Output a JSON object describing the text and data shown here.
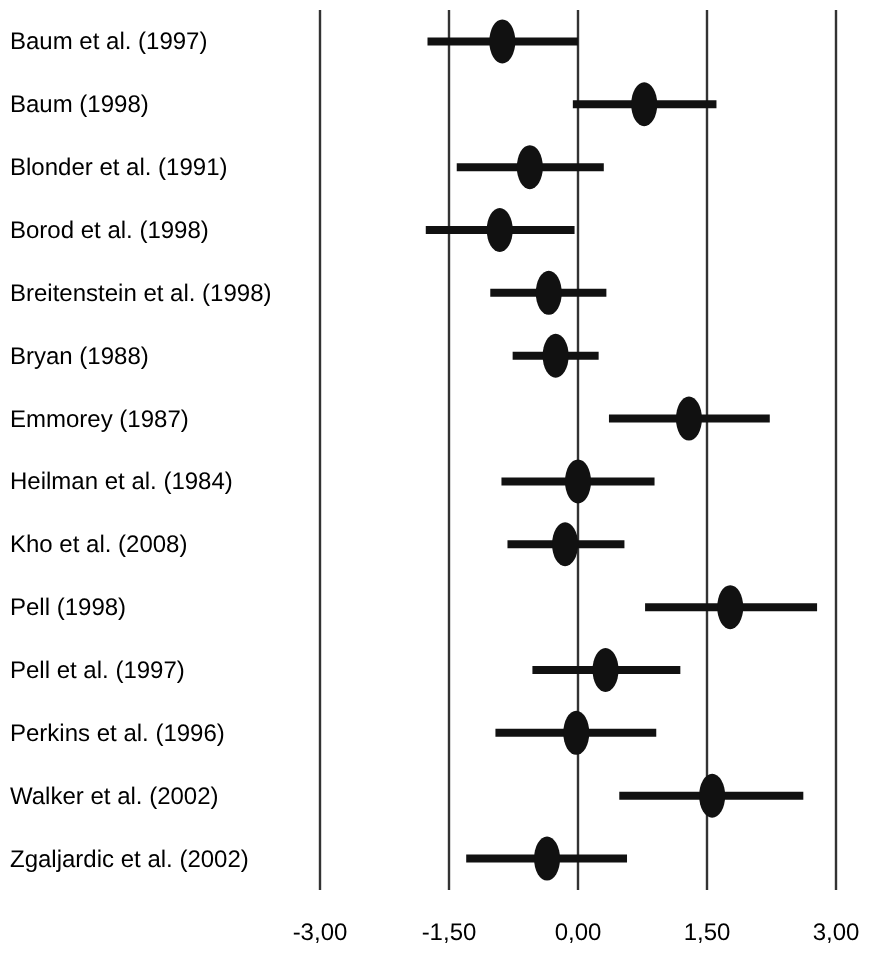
{
  "chart_data": {
    "type": "scatter",
    "orientation": "horizontal",
    "marker": "circle",
    "grid": "x",
    "color": "#111111",
    "categories": [
      "Baum et al. (1997)",
      "Baum (1998)",
      "Blonder et al. (1991)",
      "Borod et al. (1998)",
      "Breitenstein et al. (1998)",
      "Bryan (1988)",
      "Emmorey (1987)",
      "Heilman et al. (1984)",
      "Kho et al. (2008)",
      "Pell (1998)",
      "Pell et al. (1997)",
      "Perkins et al. (1996)",
      "Walker et al. (2002)",
      "Zgaljardic et al. (2002)"
    ],
    "values": [
      -0.88,
      0.77,
      -0.56,
      -0.91,
      -0.34,
      -0.26,
      1.29,
      0,
      -0.15,
      1.77,
      0.32,
      -0.02,
      1.56,
      -0.36
    ],
    "errors": [
      [
        -1.75,
        0
      ],
      [
        -0.06,
        1.61
      ],
      [
        -1.41,
        0.3
      ],
      [
        -1.77,
        -0.04
      ],
      [
        -1.02,
        0.33
      ],
      [
        -0.76,
        0.24
      ],
      [
        0.36,
        2.23
      ],
      [
        -0.89,
        0.89
      ],
      [
        -0.82,
        0.54
      ],
      [
        0.78,
        2.78
      ],
      [
        -0.53,
        1.19
      ],
      [
        -0.96,
        0.91
      ],
      [
        0.48,
        2.62
      ],
      [
        -1.3,
        0.57
      ]
    ],
    "xlim": [
      -3,
      3
    ],
    "xticks": [
      {
        "value": -3,
        "label": "-3,00"
      },
      {
        "value": -1.5,
        "label": "-1,50"
      },
      {
        "value": 0,
        "label": "0,00"
      },
      {
        "value": 1.5,
        "label": "1,50"
      },
      {
        "value": 3,
        "label": "3,00"
      }
    ]
  }
}
